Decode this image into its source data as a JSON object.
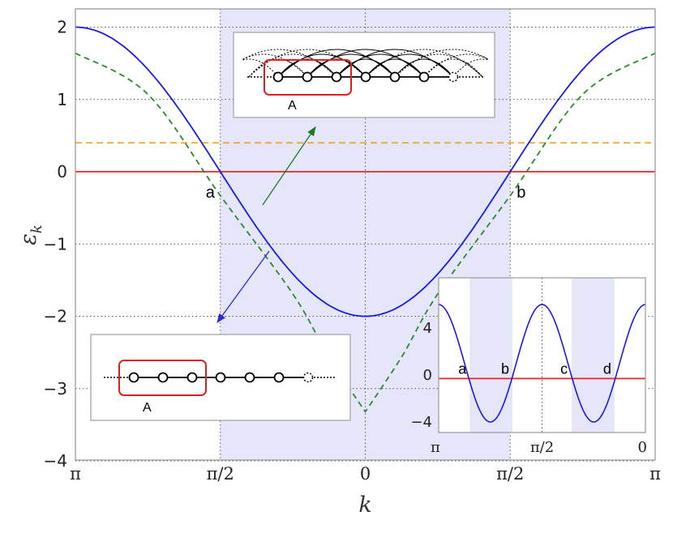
{
  "chart_data": [
    {
      "type": "line",
      "xlabel": "k",
      "ylabel_main": "ε",
      "ylabel_sub": "k",
      "xticks": [
        {
          "x": -3.14159,
          "label": "π"
        },
        {
          "x": -1.5708,
          "label": "π/2"
        },
        {
          "x": 0,
          "label": "0"
        },
        {
          "x": 1.5708,
          "label": "π/2"
        },
        {
          "x": 3.14159,
          "label": "π"
        }
      ],
      "yticks": [
        "2",
        "1",
        "0",
        "−1",
        "−2",
        "−3",
        "−4"
      ],
      "xlim": [
        -3.14159,
        3.14159
      ],
      "ylim": [
        -4,
        2.2
      ],
      "shaded_region": [
        -1.5708,
        1.5708
      ],
      "grid": true,
      "series": [
        {
          "style": "solid",
          "color": "#1a1ae6",
          "function": "-2cos(k)",
          "x": [
            -3.14159,
            -2.35619,
            -1.5708,
            -0.7854,
            0,
            0.7854,
            1.5708,
            2.35619,
            3.14159
          ],
          "y": [
            2,
            1.414,
            0,
            -1.414,
            -2,
            -1.414,
            0,
            1.414,
            2
          ]
        },
        {
          "style": "dashed",
          "color": "#2a8a2a",
          "x": [
            -3.14159,
            -2.35619,
            -1.5708,
            -0.7854,
            -0.4,
            0,
            0.4,
            0.7854,
            1.5708,
            2.35619,
            3.14159
          ],
          "y": [
            1.64,
            1.07,
            -0.33,
            -1.69,
            -2.55,
            -3.32,
            -2.55,
            -1.69,
            -0.33,
            1.07,
            1.64
          ]
        },
        {
          "style": "dashed",
          "color": "#f0a020",
          "y_const": 0.4
        },
        {
          "style": "solid",
          "color": "#ee2222",
          "y_const": 0
        }
      ],
      "points": [
        {
          "label": "a",
          "x": -1.5708,
          "y": 0
        },
        {
          "label": "b",
          "x": 1.5708,
          "y": 0
        }
      ]
    },
    {
      "type": "line",
      "role": "inset",
      "xticks": [
        {
          "x": -3.14159,
          "label": "π"
        },
        {
          "x": -1.5708,
          "label": "π/2"
        },
        {
          "x": 0,
          "label": "0"
        }
      ],
      "yticks": [
        "4",
        "0",
        "−4"
      ],
      "xlim": [
        -3.14159,
        0
      ],
      "ylim": [
        -4.5,
        6.5
      ],
      "shaded_regions": [
        [
          -2.67,
          -2.02
        ],
        [
          -1.12,
          -0.47
        ]
      ],
      "series": [
        {
          "style": "solid",
          "color": "#1a1ae6",
          "x": [
            -3.14159,
            -2.87,
            -2.355,
            -1.88,
            -1.5708,
            -1.262,
            -0.785,
            -0.28,
            0
          ],
          "y": [
            6,
            4.6,
            -4.1,
            0.2,
            2,
            0.2,
            -4.1,
            4.6,
            6
          ]
        },
        {
          "style": "solid",
          "color": "#ee2222",
          "y_const": -0.3
        }
      ],
      "points": [
        {
          "label": "a",
          "x": -2.67
        },
        {
          "label": "b",
          "x": -2.02
        },
        {
          "label": "c",
          "x": -1.12
        },
        {
          "label": "d",
          "x": -0.47
        }
      ]
    }
  ],
  "lattice_top": {
    "box_label": "A"
  },
  "lattice_bottom": {
    "box_label": "A"
  }
}
